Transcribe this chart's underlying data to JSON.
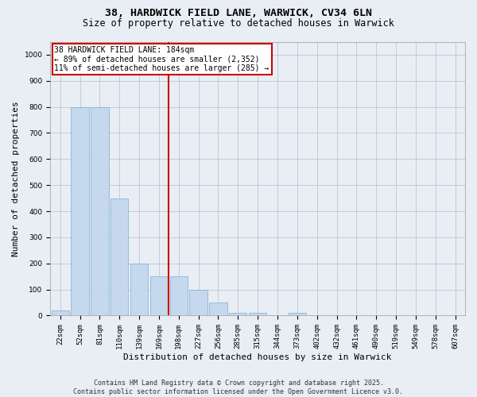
{
  "title_line1": "38, HARDWICK FIELD LANE, WARWICK, CV34 6LN",
  "title_line2": "Size of property relative to detached houses in Warwick",
  "xlabel": "Distribution of detached houses by size in Warwick",
  "ylabel": "Number of detached properties",
  "categories": [
    "22sqm",
    "52sqm",
    "81sqm",
    "110sqm",
    "139sqm",
    "169sqm",
    "198sqm",
    "227sqm",
    "256sqm",
    "285sqm",
    "315sqm",
    "344sqm",
    "373sqm",
    "402sqm",
    "432sqm",
    "461sqm",
    "490sqm",
    "519sqm",
    "549sqm",
    "578sqm",
    "607sqm"
  ],
  "values": [
    20,
    800,
    800,
    450,
    200,
    150,
    150,
    100,
    50,
    10,
    10,
    0,
    10,
    0,
    0,
    0,
    0,
    0,
    0,
    0,
    0
  ],
  "bar_color": "#c5d8ed",
  "bar_edgecolor": "#7bafd4",
  "vline_x": 5.5,
  "vline_color": "#cc0000",
  "annotation_text_line1": "38 HARDWICK FIELD LANE: 184sqm",
  "annotation_text_line2": "← 89% of detached houses are smaller (2,352)",
  "annotation_text_line3": "11% of semi-detached houses are larger (285) →",
  "annotation_box_edgecolor": "#cc0000",
  "ylim": [
    0,
    1050
  ],
  "yticks": [
    0,
    100,
    200,
    300,
    400,
    500,
    600,
    700,
    800,
    900,
    1000
  ],
  "footer_line1": "Contains HM Land Registry data © Crown copyright and database right 2025.",
  "footer_line2": "Contains public sector information licensed under the Open Government Licence v3.0.",
  "bg_color": "#e8eef4",
  "plot_bg_color": "#e8eef4",
  "title_fontsize": 9.5,
  "subtitle_fontsize": 8.5,
  "axis_label_fontsize": 8,
  "tick_fontsize": 6.5,
  "footer_fontsize": 6,
  "annotation_fontsize": 7
}
